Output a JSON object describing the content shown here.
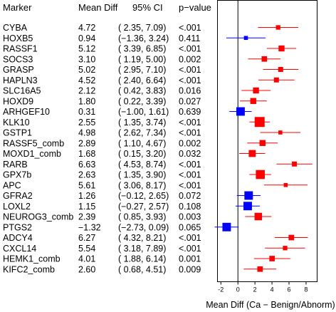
{
  "chart_data": {
    "type": "forest",
    "columns": {
      "marker": "Marker",
      "mean_diff": "Mean Diff",
      "ci": "95% CI",
      "pvalue": "p−value"
    },
    "xlabel": "Mean Diff (Ca − Benign/Abnorm)",
    "xlim": [
      -2.4,
      9.3
    ],
    "xticks": [
      "-2",
      "0",
      "2",
      "4",
      "6",
      "8"
    ],
    "xtick_values": [
      -2,
      0,
      2,
      4,
      6,
      8
    ],
    "reference_line": 0,
    "colors": {
      "significant": "#ff0000",
      "not_significant": "#0000ff"
    },
    "rows": [
      {
        "marker": "CYBA",
        "md": "4.72",
        "ci": "( 2.35, 7.09)",
        "p": "<.001",
        "est": 4.72,
        "lo": 2.35,
        "hi": 7.09,
        "w": 0.45,
        "sig": true
      },
      {
        "marker": "HOXB5",
        "md": "0.94",
        "ci": "(−1.36, 3.24)",
        "p": "0.411",
        "est": 0.94,
        "lo": -1.36,
        "hi": 3.24,
        "w": 0.4,
        "sig": false
      },
      {
        "marker": "RASSF1",
        "md": "5.12",
        "ci": "( 3.39, 6.85)",
        "p": "<.001",
        "est": 5.12,
        "lo": 3.39,
        "hi": 6.85,
        "w": 0.6,
        "sig": true
      },
      {
        "marker": "SOCS3",
        "md": "3.10",
        "ci": "( 1.19, 5.00)",
        "p": "0.002",
        "est": 3.1,
        "lo": 1.19,
        "hi": 5.0,
        "w": 0.55,
        "sig": true
      },
      {
        "marker": "GRASP",
        "md": "5.02",
        "ci": "( 2.95, 7.10)",
        "p": "<.001",
        "est": 5.02,
        "lo": 2.95,
        "hi": 7.1,
        "w": 0.5,
        "sig": true
      },
      {
        "marker": "HAPLN3",
        "md": "4.52",
        "ci": "( 2.40, 6.64)",
        "p": "<.001",
        "est": 4.52,
        "lo": 2.4,
        "hi": 6.64,
        "w": 0.5,
        "sig": true
      },
      {
        "marker": "SLC16A5",
        "md": "2.12",
        "ci": "( 0.42, 3.83)",
        "p": "0.016",
        "est": 2.12,
        "lo": 0.42,
        "hi": 3.83,
        "w": 0.6,
        "sig": true
      },
      {
        "marker": "HOXD9",
        "md": "1.80",
        "ci": "( 0.22, 3.39)",
        "p": "0.027",
        "est": 1.8,
        "lo": 0.22,
        "hi": 3.39,
        "w": 0.6,
        "sig": true
      },
      {
        "marker": "ARHGEF10",
        "md": "0.31",
        "ci": "(−1.00, 1.61)",
        "p": "0.639",
        "est": 0.31,
        "lo": -1.0,
        "hi": 1.61,
        "w": 0.85,
        "sig": false
      },
      {
        "marker": "KLK10",
        "md": "2.55",
        "ci": "( 1.35, 3.74)",
        "p": "<.001",
        "est": 2.55,
        "lo": 1.35,
        "hi": 3.74,
        "w": 1.0,
        "sig": true
      },
      {
        "marker": "GSTP1",
        "md": "4.98",
        "ci": "( 2.62, 7.34)",
        "p": "<.001",
        "est": 4.98,
        "lo": 2.62,
        "hi": 7.34,
        "w": 0.4,
        "sig": true
      },
      {
        "marker": "RASSF5_comb",
        "md": "2.89",
        "ci": "( 1.10, 4.67)",
        "p": "0.002",
        "est": 2.89,
        "lo": 1.1,
        "hi": 4.67,
        "w": 0.6,
        "sig": true
      },
      {
        "marker": "MOXD1_comb",
        "md": "1.68",
        "ci": "( 0.15, 3.20)",
        "p": "0.032",
        "est": 1.68,
        "lo": 0.15,
        "hi": 3.2,
        "w": 0.7,
        "sig": true
      },
      {
        "marker": "RARB",
        "md": "6.63",
        "ci": "( 4.53, 8.74)",
        "p": "<.001",
        "est": 6.63,
        "lo": 4.53,
        "hi": 8.74,
        "w": 0.5,
        "sig": true
      },
      {
        "marker": "GPX7b",
        "md": "2.63",
        "ci": "( 1.35, 3.90)",
        "p": "<.001",
        "est": 2.63,
        "lo": 1.35,
        "hi": 3.9,
        "w": 0.9,
        "sig": true
      },
      {
        "marker": "APC",
        "md": "5.61",
        "ci": "( 3.06, 8.17)",
        "p": "<.001",
        "est": 5.61,
        "lo": 3.06,
        "hi": 8.17,
        "w": 0.4,
        "sig": true
      },
      {
        "marker": "GFRA2",
        "md": "1.26",
        "ci": "(−0.12, 2.65)",
        "p": "0.072",
        "est": 1.26,
        "lo": -0.12,
        "hi": 2.65,
        "w": 0.85,
        "sig": false
      },
      {
        "marker": "LOXL2",
        "md": "1.15",
        "ci": "(−0.27, 2.57)",
        "p": "0.108",
        "est": 1.15,
        "lo": -0.27,
        "hi": 2.57,
        "w": 0.85,
        "sig": false
      },
      {
        "marker": "NEUROG3_comb",
        "md": "2.39",
        "ci": "( 0.85, 3.93)",
        "p": "0.003",
        "est": 2.39,
        "lo": 0.85,
        "hi": 3.93,
        "w": 0.75,
        "sig": true
      },
      {
        "marker": "PTGS2",
        "md": "−1.32",
        "ci": "(−2.73, 0.09)",
        "p": "0.065",
        "est": -1.32,
        "lo": -2.73,
        "hi": 0.09,
        "w": 0.85,
        "sig": false
      },
      {
        "marker": "ADCY4",
        "md": "6.27",
        "ci": "( 4.32, 8.21)",
        "p": "<.001",
        "est": 6.27,
        "lo": 4.32,
        "hi": 8.21,
        "w": 0.55,
        "sig": true
      },
      {
        "marker": "CXCL14",
        "md": "5.54",
        "ci": "( 3.18, 7.89)",
        "p": "<.001",
        "est": 5.54,
        "lo": 3.18,
        "hi": 7.89,
        "w": 0.45,
        "sig": true
      },
      {
        "marker": "HEMK1_comb",
        "md": "4.01",
        "ci": "( 1.88, 6.14)",
        "p": "0.001",
        "est": 4.01,
        "lo": 1.88,
        "hi": 6.14,
        "w": 0.55,
        "sig": true
      },
      {
        "marker": "KIFC2_comb",
        "md": "2.60",
        "ci": "( 0.68, 4.51)",
        "p": "0.009",
        "est": 2.6,
        "lo": 0.68,
        "hi": 4.51,
        "w": 0.55,
        "sig": true
      }
    ]
  }
}
